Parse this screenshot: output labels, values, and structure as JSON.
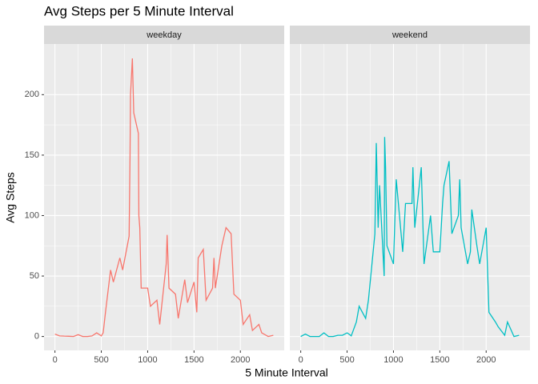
{
  "chart_data": {
    "type": "line",
    "title": "Avg Steps per 5 Minute Interval",
    "x_label": "5 Minute Interval",
    "y_label": "Avg Steps",
    "x": [
      0,
      50,
      100,
      150,
      200,
      250,
      300,
      350,
      400,
      450,
      500,
      520,
      545,
      600,
      630,
      700,
      730,
      800,
      810,
      815,
      835,
      850,
      900,
      905,
      915,
      930,
      1000,
      1030,
      1100,
      1130,
      1200,
      1210,
      1230,
      1300,
      1330,
      1400,
      1430,
      1500,
      1530,
      1545,
      1600,
      1630,
      1700,
      1715,
      1730,
      1800,
      1830,
      1845,
      1900,
      1930,
      2000,
      2030,
      2100,
      2130,
      2200,
      2230,
      2300,
      2355
    ],
    "series": [
      {
        "name": "weekday",
        "color": "#F8766D",
        "values": [
          2,
          0.5,
          0.3,
          0.2,
          0,
          1.5,
          0,
          0,
          0.5,
          3,
          0.5,
          3,
          20,
          55,
          45,
          65,
          55,
          83,
          150,
          200,
          230,
          185,
          168,
          100,
          90,
          40,
          40,
          25,
          30,
          10,
          60,
          84,
          40,
          35,
          15,
          47,
          28,
          45,
          20,
          65,
          72,
          30,
          40,
          65,
          40,
          75,
          85,
          90,
          85,
          35,
          30,
          10,
          18,
          5,
          10,
          3,
          0,
          1
        ]
      },
      {
        "name": "weekend",
        "color": "#00BFC4",
        "values": [
          0,
          2,
          0,
          0,
          0,
          3,
          0,
          0,
          1,
          1,
          3,
          2,
          0.5,
          12,
          25,
          15,
          30,
          85,
          135,
          160,
          90,
          125,
          50,
          165,
          140,
          75,
          60,
          130,
          70,
          110,
          110,
          140,
          90,
          140,
          60,
          100,
          70,
          70,
          110,
          125,
          145,
          85,
          100,
          130,
          90,
          60,
          70,
          105,
          75,
          60,
          90,
          20,
          12,
          8,
          1,
          12,
          0,
          1
        ]
      }
    ],
    "xlim": [
      -117.75,
      2472.75
    ],
    "ylim": [
      -11.5,
      241.9
    ],
    "xticks": [
      0,
      500,
      1000,
      1500,
      2000
    ],
    "yticks": [
      0,
      50,
      100,
      150,
      200
    ],
    "grid": true
  }
}
